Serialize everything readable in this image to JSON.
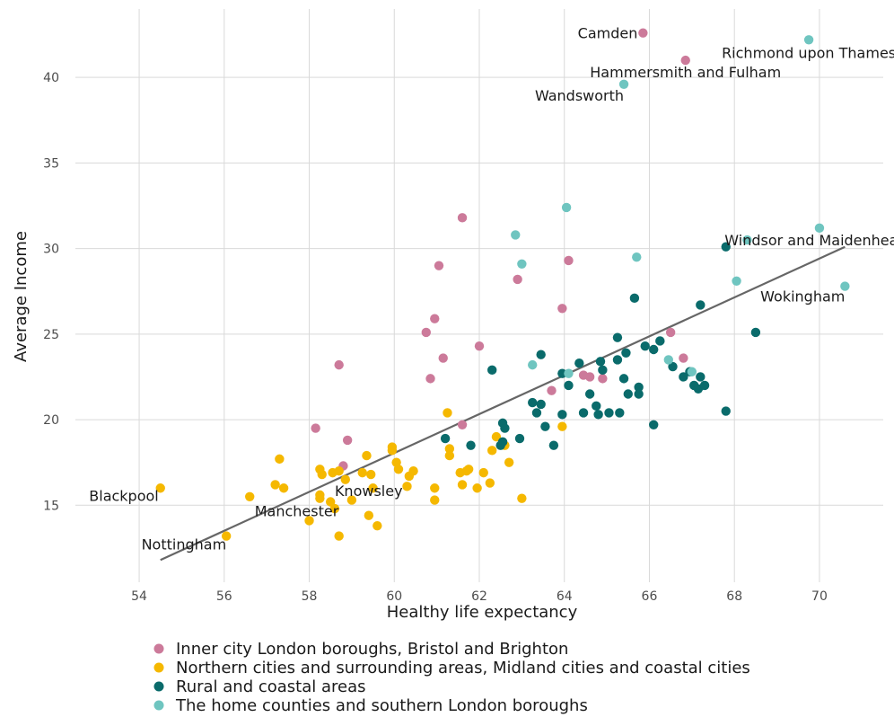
{
  "chart_data": {
    "type": "scatter",
    "xlabel": "Healthy life expectancy",
    "ylabel": "Average Income",
    "xlim": [
      52.5,
      71.5
    ],
    "ylim": [
      10.5,
      44
    ],
    "x_ticks": [
      54,
      56,
      58,
      60,
      62,
      64,
      66,
      68,
      70
    ],
    "y_ticks": [
      15,
      20,
      25,
      30,
      35,
      40
    ],
    "grid": true,
    "legend_position": "bottom",
    "trend_line": {
      "x": [
        54.5,
        70.6
      ],
      "y": [
        11.8,
        30.1
      ]
    },
    "series": [
      {
        "name": "Inner city London boroughs, Bristol and Brighton",
        "color": "#cc7a9a",
        "points": [
          [
            65.85,
            42.6
          ],
          [
            66.85,
            41.0
          ],
          [
            61.6,
            31.8
          ],
          [
            61.05,
            29.0
          ],
          [
            62.9,
            28.2
          ],
          [
            64.1,
            29.3
          ],
          [
            63.95,
            26.5
          ],
          [
            60.95,
            25.9
          ],
          [
            60.75,
            25.1
          ],
          [
            66.5,
            25.1
          ],
          [
            60.85,
            22.4
          ],
          [
            61.15,
            23.6
          ],
          [
            62.0,
            24.3
          ],
          [
            58.7,
            23.2
          ],
          [
            64.45,
            22.6
          ],
          [
            64.6,
            22.5
          ],
          [
            63.7,
            21.7
          ],
          [
            64.9,
            22.4
          ],
          [
            66.8,
            23.6
          ],
          [
            58.15,
            19.5
          ],
          [
            58.9,
            18.8
          ],
          [
            61.6,
            19.7
          ],
          [
            58.8,
            17.3
          ]
        ]
      },
      {
        "name": "Northern cities and surrounding areas, Midland cities and coastal cities",
        "color": "#f5b800",
        "points": [
          [
            54.5,
            16.0
          ],
          [
            56.05,
            13.2
          ],
          [
            56.6,
            15.5
          ],
          [
            57.3,
            17.7
          ],
          [
            57.2,
            16.2
          ],
          [
            57.4,
            16.0
          ],
          [
            58.25,
            17.1
          ],
          [
            58.3,
            16.8
          ],
          [
            58.25,
            15.4
          ],
          [
            58.25,
            15.6
          ],
          [
            58.5,
            15.2
          ],
          [
            58.55,
            16.9
          ],
          [
            58.6,
            14.8
          ],
          [
            58.7,
            17.0
          ],
          [
            58.7,
            13.2
          ],
          [
            58.0,
            14.1
          ],
          [
            58.85,
            16.5
          ],
          [
            59.0,
            15.3
          ],
          [
            59.35,
            17.9
          ],
          [
            59.25,
            16.9
          ],
          [
            59.45,
            16.8
          ],
          [
            59.4,
            14.4
          ],
          [
            59.6,
            13.8
          ],
          [
            59.5,
            16.0
          ],
          [
            59.95,
            18.2
          ],
          [
            59.95,
            18.4
          ],
          [
            60.05,
            17.5
          ],
          [
            60.1,
            17.1
          ],
          [
            60.3,
            16.1
          ],
          [
            60.35,
            16.7
          ],
          [
            60.45,
            17.0
          ],
          [
            60.95,
            16.0
          ],
          [
            60.95,
            15.3
          ],
          [
            61.25,
            20.4
          ],
          [
            61.3,
            18.3
          ],
          [
            61.3,
            17.9
          ],
          [
            61.55,
            16.9
          ],
          [
            61.6,
            16.2
          ],
          [
            61.7,
            17.0
          ],
          [
            61.75,
            17.1
          ],
          [
            61.95,
            16.0
          ],
          [
            62.1,
            16.9
          ],
          [
            62.25,
            16.3
          ],
          [
            62.3,
            18.2
          ],
          [
            62.4,
            19.0
          ],
          [
            62.6,
            18.5
          ],
          [
            62.7,
            17.5
          ],
          [
            63.0,
            15.4
          ],
          [
            63.95,
            19.6
          ]
        ]
      },
      {
        "name": "Rural and coastal areas",
        "color": "#0a6b6b",
        "points": [
          [
            67.8,
            30.1
          ],
          [
            68.5,
            25.1
          ],
          [
            67.2,
            26.7
          ],
          [
            65.65,
            27.1
          ],
          [
            65.25,
            24.8
          ],
          [
            65.45,
            23.9
          ],
          [
            65.9,
            24.3
          ],
          [
            66.1,
            24.1
          ],
          [
            66.25,
            24.6
          ],
          [
            65.25,
            23.5
          ],
          [
            63.45,
            23.8
          ],
          [
            63.95,
            22.7
          ],
          [
            64.1,
            22.0
          ],
          [
            64.35,
            23.3
          ],
          [
            64.85,
            23.4
          ],
          [
            64.9,
            22.9
          ],
          [
            62.3,
            22.9
          ],
          [
            64.6,
            21.5
          ],
          [
            65.4,
            22.4
          ],
          [
            65.5,
            21.5
          ],
          [
            65.75,
            21.9
          ],
          [
            65.75,
            21.5
          ],
          [
            66.55,
            23.1
          ],
          [
            66.8,
            22.5
          ],
          [
            66.95,
            22.8
          ],
          [
            67.05,
            22.0
          ],
          [
            67.15,
            21.8
          ],
          [
            67.2,
            22.5
          ],
          [
            67.3,
            22.0
          ],
          [
            63.25,
            21.0
          ],
          [
            63.35,
            20.4
          ],
          [
            63.45,
            20.9
          ],
          [
            63.55,
            19.6
          ],
          [
            63.75,
            18.5
          ],
          [
            63.95,
            20.3
          ],
          [
            64.45,
            20.4
          ],
          [
            64.75,
            20.8
          ],
          [
            64.8,
            20.3
          ],
          [
            65.05,
            20.4
          ],
          [
            65.3,
            20.4
          ],
          [
            62.55,
            19.8
          ],
          [
            62.6,
            19.5
          ],
          [
            62.55,
            18.7
          ],
          [
            62.5,
            18.5
          ],
          [
            62.95,
            18.9
          ],
          [
            61.8,
            18.5
          ],
          [
            61.2,
            18.9
          ],
          [
            66.1,
            19.7
          ],
          [
            67.8,
            20.5
          ]
        ]
      },
      {
        "name": "The home counties and southern London boroughs",
        "color": "#6fc5c0",
        "points": [
          [
            69.75,
            42.2
          ],
          [
            65.4,
            39.6
          ],
          [
            70.0,
            31.2
          ],
          [
            64.05,
            32.4
          ],
          [
            62.85,
            30.8
          ],
          [
            63.0,
            29.1
          ],
          [
            65.7,
            29.5
          ],
          [
            68.3,
            30.5
          ],
          [
            68.05,
            28.1
          ],
          [
            70.6,
            27.8
          ],
          [
            63.25,
            23.2
          ],
          [
            64.1,
            22.7
          ],
          [
            66.45,
            23.5
          ],
          [
            67.0,
            22.8
          ]
        ]
      }
    ],
    "annotations": [
      {
        "text": "Camden",
        "x": 65.85,
        "y": 42.6,
        "anchor": "end",
        "dx": -6,
        "dy": 6
      },
      {
        "text": "Richmond upon Thames",
        "x": 69.75,
        "y": 42.2,
        "anchor": "middle",
        "dx": 0,
        "dy": 20
      },
      {
        "text": "Hammersmith and Fulham",
        "x": 66.85,
        "y": 41.0,
        "anchor": "middle",
        "dx": 0,
        "dy": 19
      },
      {
        "text": "Wandsworth",
        "x": 65.4,
        "y": 39.6,
        "anchor": "end",
        "dx": 0,
        "dy": 18
      },
      {
        "text": "Windsor and Maidenhead",
        "x": 70.0,
        "y": 31.2,
        "anchor": "middle",
        "dx": -4,
        "dy": 19
      },
      {
        "text": "Wokingham",
        "x": 70.6,
        "y": 27.8,
        "anchor": "end",
        "dx": 0,
        "dy": 17
      },
      {
        "text": "Blackpool",
        "x": 54.5,
        "y": 16.0,
        "anchor": "end",
        "dx": -2,
        "dy": 14
      },
      {
        "text": "Knowsley",
        "x": 58.6,
        "y": 15.8,
        "anchor": "start",
        "dx": 0,
        "dy": 5
      },
      {
        "text": "Manchester",
        "x": 58.0,
        "y": 14.1,
        "anchor": "middle",
        "dx": -14,
        "dy": -5
      },
      {
        "text": "Nottingham",
        "x": 56.05,
        "y": 13.2,
        "anchor": "end",
        "dx": 0,
        "dy": 15
      }
    ]
  }
}
